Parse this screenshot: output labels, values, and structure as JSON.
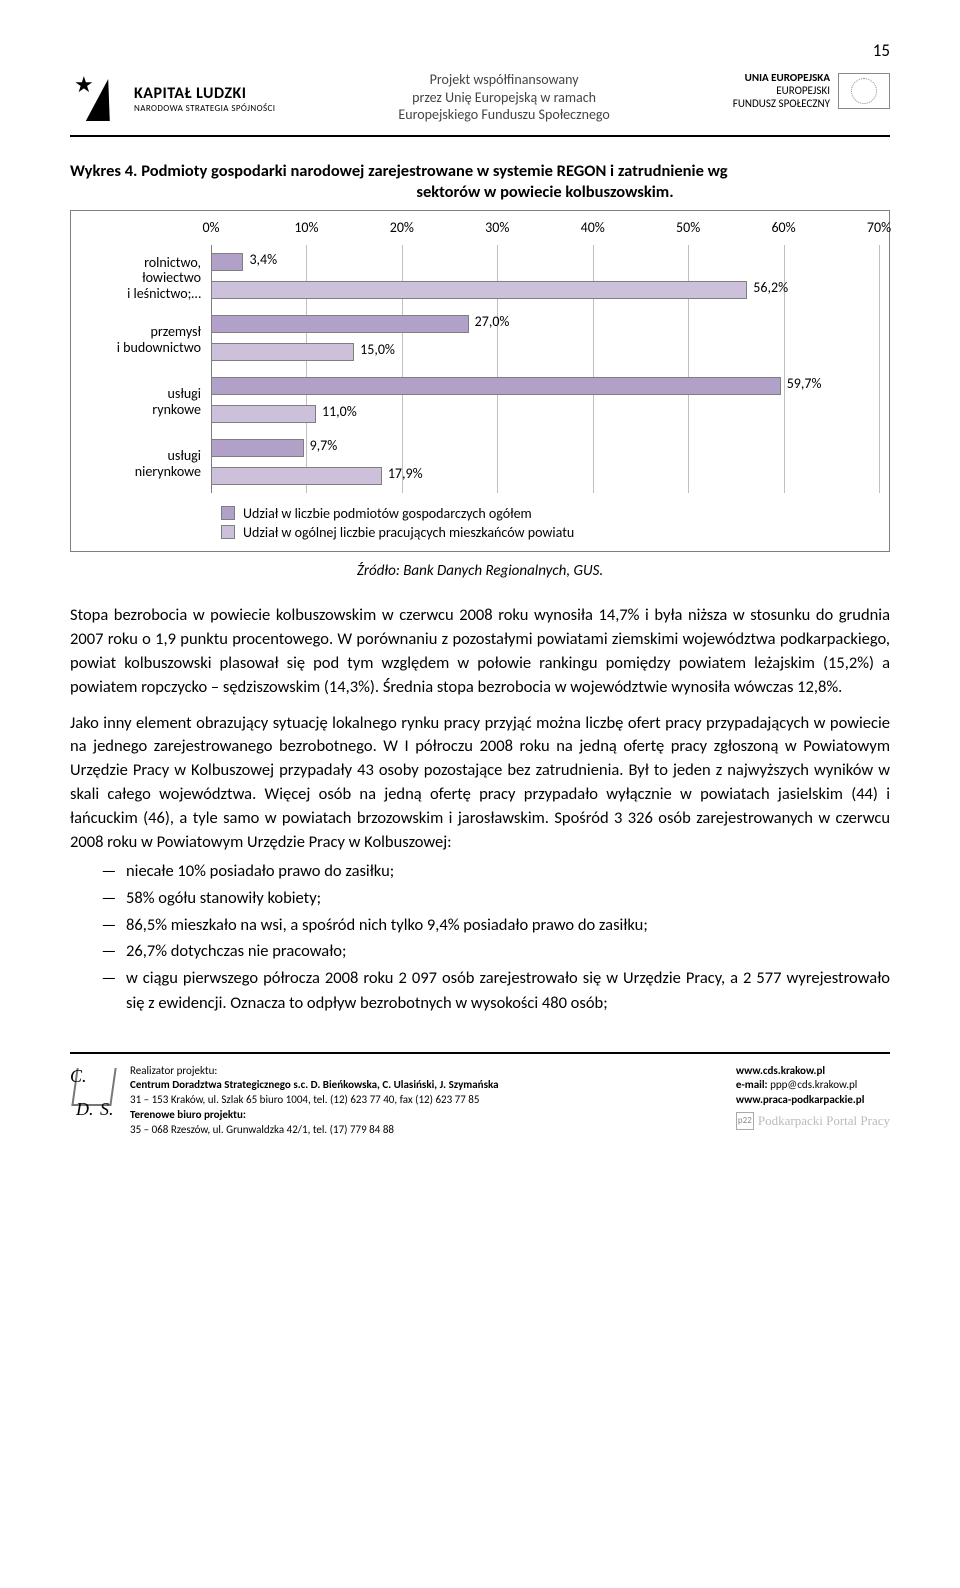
{
  "page_number": "15",
  "header": {
    "left_title": "KAPITAŁ LUDZKI",
    "left_sub": "NARODOWA STRATEGIA SPÓJNOŚCI",
    "center_line1": "Projekt współfinansowany",
    "center_line2": "przez Unię Europejską w ramach",
    "center_line3": "Europejskiego Funduszu Społecznego",
    "right_line1": "UNIA EUROPEJSKA",
    "right_line2": "EUROPEJSKI",
    "right_line3": "FUNDUSZ SPOŁECZNY"
  },
  "chart": {
    "type": "bar-horizontal-grouped",
    "title_row1": "Wykres 4. Podmioty gospodarki narodowej zarejestrowane w systemie REGON i zatrudnienie wg",
    "title_row2": "sektorów w powiecie kolbuszowskim.",
    "x_ticks": [
      "0%",
      "10%",
      "20%",
      "30%",
      "40%",
      "50%",
      "60%",
      "70%"
    ],
    "x_max_percent": 70,
    "categories": [
      {
        "line1": "rolnictwo,",
        "line2": "łowiectwo",
        "line3": "i leśnictwo;…"
      },
      {
        "line1": "przemysł",
        "line2": "i budownictwo",
        "line3": ""
      },
      {
        "line1": "usługi",
        "line2": "rynkowe",
        "line3": ""
      },
      {
        "line1": "usługi",
        "line2": "nierynkowe",
        "line3": ""
      }
    ],
    "series": [
      {
        "name": "Udział w liczbie podmiotów gospodarczych ogółem",
        "color": "#b1a0c7",
        "values": [
          3.4,
          27.0,
          59.7,
          9.7
        ],
        "labels": [
          "3,4%",
          "27,0%",
          "59,7%",
          "9,7%"
        ]
      },
      {
        "name": "Udział w ogólnej liczbie pracujących mieszkańców powiatu",
        "color": "#ccc0da",
        "values": [
          56.2,
          15.0,
          11.0,
          17.9
        ],
        "labels": [
          "56,2%",
          "15,0%",
          "11,0%",
          "17,9%"
        ]
      }
    ],
    "grid_color": "#bfbfbf",
    "axis_color": "#7f7f7f",
    "background_color": "#ffffff",
    "bar_border_color": "#7f7f7f",
    "label_fontsize": 14,
    "source": "Źródło: Bank Danych Regionalnych, GUS."
  },
  "body": {
    "p1": "Stopa bezrobocia w powiecie kolbuszowskim w czerwcu 2008 roku wynosiła 14,7% i była niższa w stosunku do grudnia 2007 roku o 1,9 punktu procentowego. W porównaniu z pozostałymi powiatami ziemskimi województwa podkarpackiego, powiat kolbuszowski plasował się pod tym względem w połowie rankingu pomiędzy powiatem leżajskim (15,2%) a powiatem ropczycko – sędziszowskim (14,3%). Średnia stopa bezrobocia w województwie wynosiła wówczas 12,8%.",
    "p2": "Jako inny element obrazujący sytuację lokalnego rynku pracy przyjąć można liczbę ofert pracy przypadających w powiecie na jednego zarejestrowanego bezrobotnego. W I półroczu 2008 roku na jedną ofertę pracy zgłoszoną w Powiatowym Urzędzie Pracy w Kolbuszowej przypadały 43 osoby pozostające bez zatrudnienia. Był to jeden z najwyższych wyników w skali całego województwa. Więcej osób na jedną ofertę pracy przypadało wyłącznie w powiatach jasielskim (44) i łańcuckim (46), a tyle samo w powiatach brzozowskim i jarosławskim. Spośród 3 326 osób zarejestrowanych w czerwcu 2008 roku w Powiatowym Urzędzie Pracy w Kolbuszowej:",
    "bullets": [
      "niecałe 10% posiadało prawo do zasiłku;",
      "58% ogółu stanowiły kobiety;",
      "86,5% mieszkało na wsi, a spośród nich tylko 9,4% posiadało prawo do zasiłku;",
      "26,7% dotychczas nie pracowało;",
      "w ciągu pierwszego półrocza 2008 roku 2 097 osób zarejestrowało się w Urzędzie Pracy, a 2 577 wyrejestrowało się z ewidencji. Oznacza to odpływ bezrobotnych w wysokości 480 osób;"
    ]
  },
  "footer": {
    "realizator_label": "Realizator projektu:",
    "org": "Centrum Doradztwa Strategicznego s.c. D. Bieńkowska, C. Ulasiński, J. Szymańska",
    "addr1": "31 – 153 Kraków, ul. Szlak 65 biuro 1004, tel. (12) 623 77 40, fax (12) 623 77 85",
    "teren_label": "Terenowe biuro projektu:",
    "addr2": "35 – 068 Rzeszów, ul. Grunwaldzka 42/1, tel. (17) 779 84 88",
    "site1": "www.cds.krakow.pl",
    "email_label": "e-mail:",
    "email": "ppp@cds.krakow.pl",
    "site2": "www.praca-podkarpackie.pl",
    "portal": "Podkarpacki Portal Pracy"
  }
}
